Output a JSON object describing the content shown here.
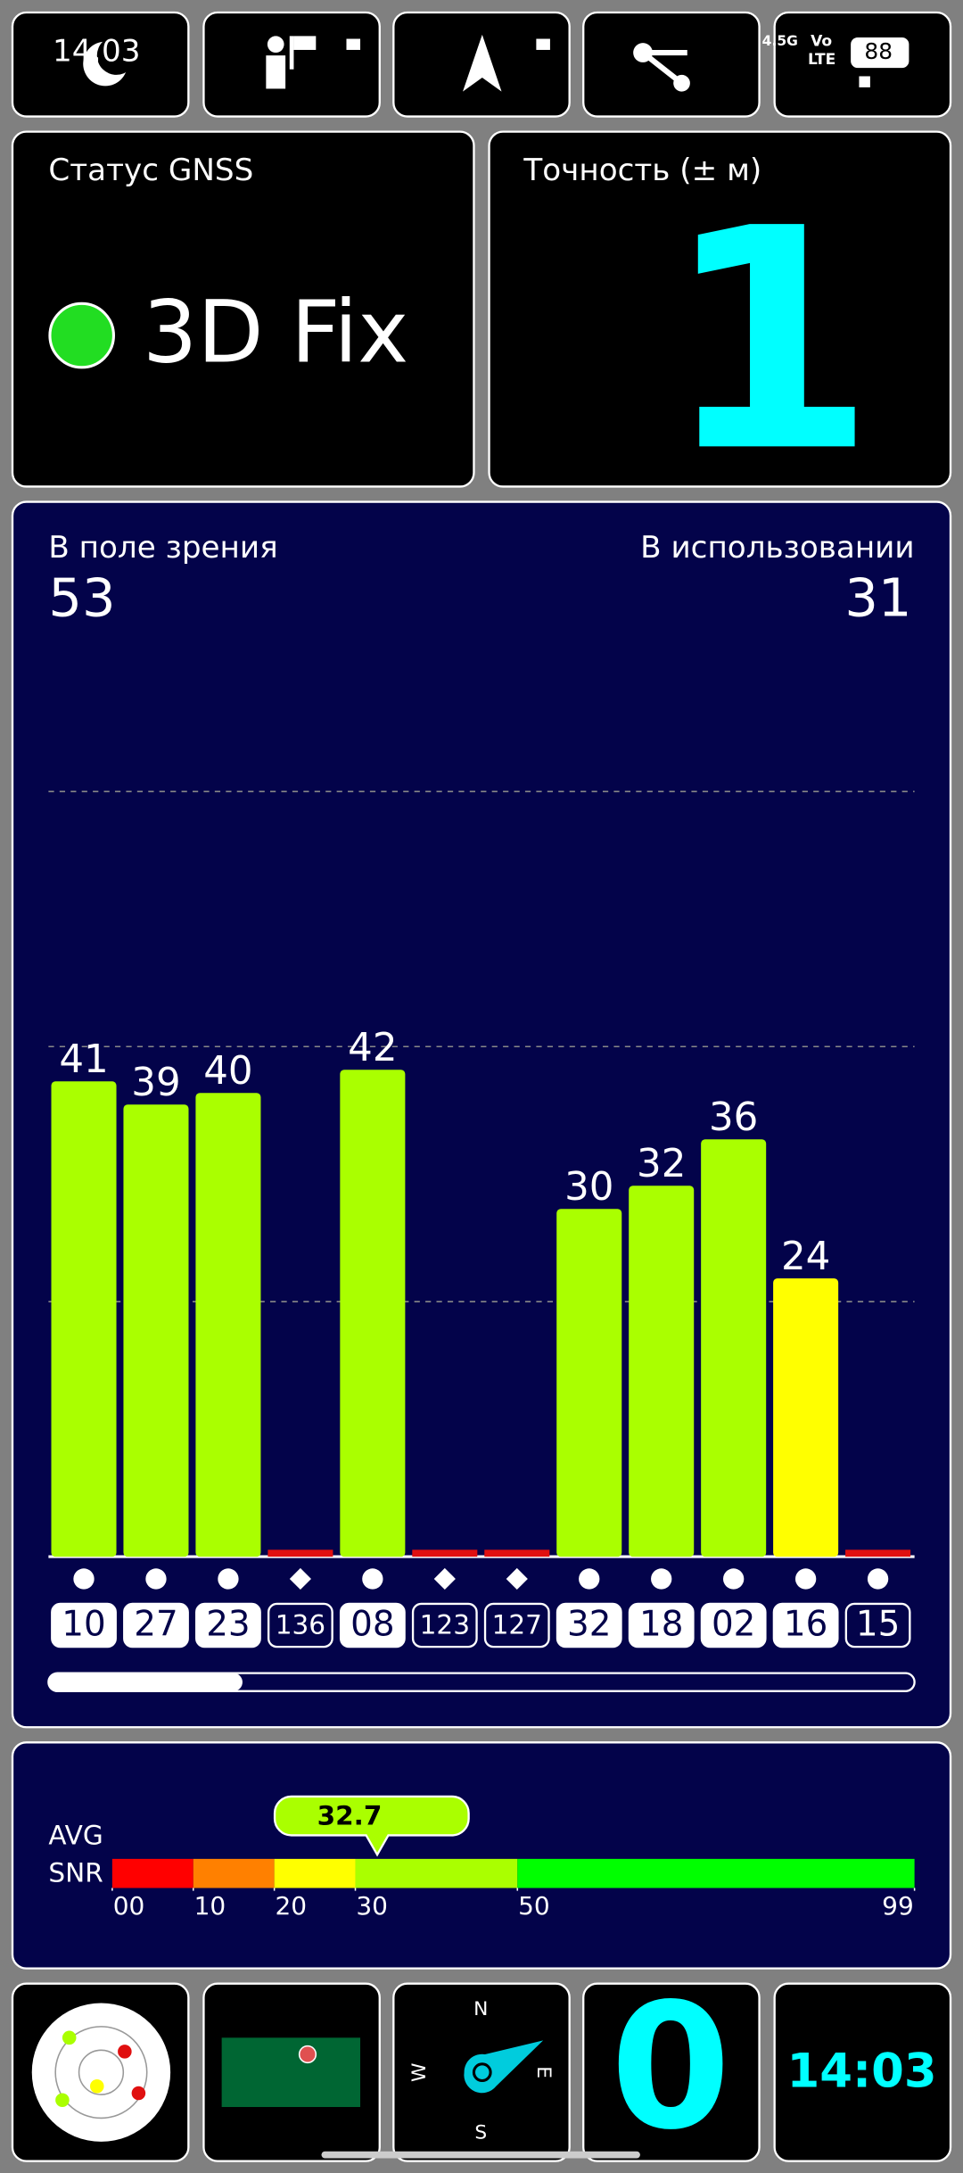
{
  "status_bar": {
    "time": "14:03",
    "network": "4.5G",
    "volte_top": "Vo",
    "volte_bottom": "LTE",
    "battery": "88"
  },
  "gnss_status": {
    "label": "Статус GNSS",
    "value": "3D Fix"
  },
  "accuracy": {
    "label": "Точность (± м)",
    "value": 1
  },
  "satellites": {
    "in_view_label": "В поле зрения",
    "in_view": 53,
    "in_use_label": "В использовании",
    "in_use": 31
  },
  "chart_data": {
    "type": "bar",
    "categories": [
      "10",
      "27",
      "23",
      "136",
      "08",
      "123",
      "127",
      "32",
      "18",
      "02",
      "16",
      "15"
    ],
    "values": [
      41,
      39,
      40,
      null,
      42,
      null,
      null,
      30,
      32,
      36,
      24,
      null
    ],
    "colors": [
      "#aaff00",
      "#aaff00",
      "#aaff00",
      "#e01010",
      "#aaff00",
      "#e01010",
      "#e01010",
      "#aaff00",
      "#aaff00",
      "#aaff00",
      "#ffff00",
      "#e01010"
    ],
    "markers": [
      "circle",
      "circle",
      "circle",
      "diamond",
      "circle",
      "diamond",
      "diamond",
      "circle",
      "circle",
      "circle",
      "circle",
      "circle"
    ],
    "used": [
      true,
      true,
      true,
      false,
      true,
      false,
      false,
      true,
      true,
      true,
      true,
      false
    ],
    "ylim": [
      0,
      66
    ]
  },
  "snr": {
    "label_top": "AVG",
    "label_bottom": "SNR",
    "avg": 32.7,
    "xlim": [
      0,
      99
    ],
    "xticks": [
      {
        "value": 0,
        "label": "00"
      },
      10,
      20,
      30,
      50,
      99
    ],
    "band_colors": [
      "#ff0000",
      "#ff8000",
      "#ffff00",
      "#aaff00",
      "#00ff00"
    ]
  },
  "compass": {
    "north": "N",
    "east": "E",
    "south": "S",
    "west": "W"
  },
  "speed": 0,
  "clock": "14:03"
}
